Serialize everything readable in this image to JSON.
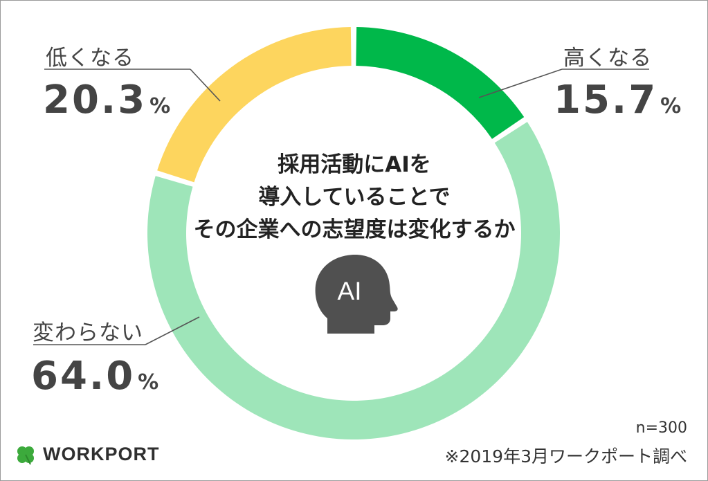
{
  "chart_data": {
    "type": "pie",
    "style": "donut",
    "title": "採用活動にAIを\n導入していることで\nその企業への志望度は変化するか",
    "categories": [
      "高くなる",
      "変わらない",
      "低くなる"
    ],
    "values": [
      15.7,
      64.0,
      20.3
    ],
    "unit": "%",
    "colors": [
      "#00b84a",
      "#9ee5b9",
      "#fdd55e"
    ]
  },
  "labels": {
    "high": {
      "name": "高くなる",
      "value": "15.7",
      "unit": "%"
    },
    "same": {
      "name": "変わらない",
      "value": "64.0",
      "unit": "%"
    },
    "low": {
      "name": "低くなる",
      "value": "20.3",
      "unit": "%"
    }
  },
  "question": [
    "採用活動にAIを",
    "導入していることで",
    "その企業への志望度は変化するか"
  ],
  "icon": {
    "name": "ai-head-icon",
    "text": "AI",
    "color": "#505050"
  },
  "footer": {
    "sample": "n=300",
    "source": "※2019年3月ワークポート調べ"
  },
  "logo": {
    "text": "WORKPORT",
    "color": "#3caa3c"
  }
}
